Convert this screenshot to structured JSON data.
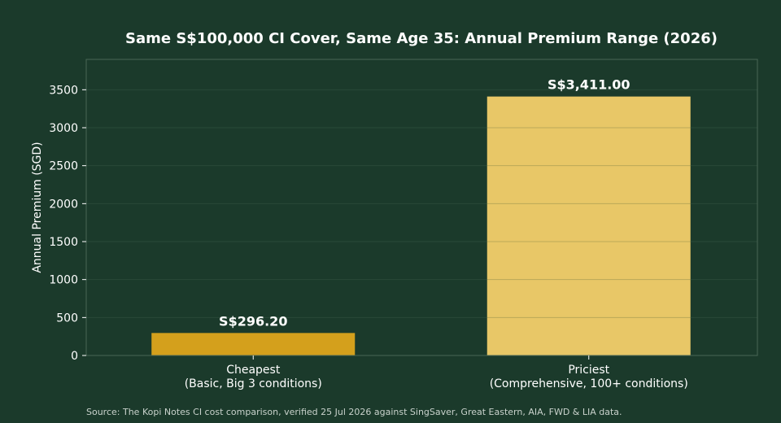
{
  "chart_data": {
    "type": "bar",
    "title": "Same S$100,000 CI Cover, Same Age 35: Annual Premium Range (2026)",
    "ylabel": "Annual Premium (SGD)",
    "xlabel": "",
    "ylim": [
      0,
      3900
    ],
    "yticks": [
      0,
      500,
      1000,
      1500,
      2000,
      2500,
      3000,
      3500
    ],
    "grid": true,
    "categories": [
      {
        "line1": "Cheapest",
        "line2": "(Basic, Big 3 conditions)"
      },
      {
        "line1": "Priciest",
        "line2": "(Comprehensive, 100+ conditions)"
      }
    ],
    "values": [
      296.2,
      3411.0
    ],
    "data_labels": [
      "S$296.20",
      "S$3,411.00"
    ],
    "bar_colors": [
      "#d4a01c",
      "#e8c767"
    ],
    "source": "Source: The Kopi Notes CI cost comparison, verified 25 Jul 2026 against SingSaver, Great Eastern, AIA, FWD & LIA data."
  },
  "colors": {
    "background": "#1b3a2b",
    "frame": "#4a6656",
    "grid": "#2e4d3d",
    "text": "#ffffff",
    "muted_text": "#c9d2cc"
  }
}
